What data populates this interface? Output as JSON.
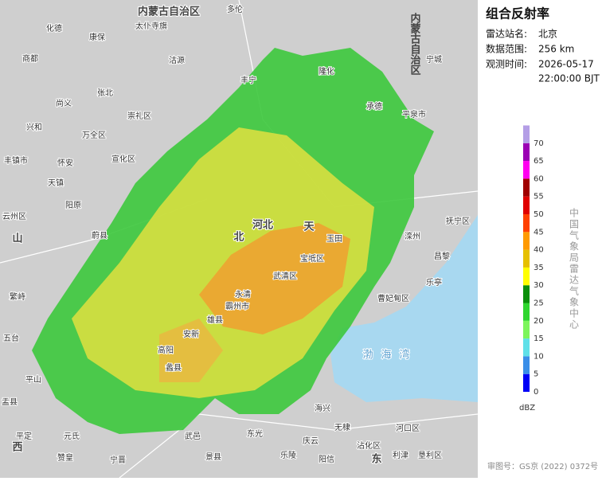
{
  "panel": {
    "title": "组合反射率",
    "station_label": "雷达站名:",
    "station": "北京",
    "range_label": "数据范围:",
    "range": "256 km",
    "time_label": "观测时间:",
    "date": "2026-05-17",
    "time": "22:00:00 BJT"
  },
  "legend": {
    "unit": "dBZ",
    "ticks": [
      0,
      5,
      10,
      15,
      20,
      25,
      30,
      35,
      40,
      45,
      50,
      55,
      60,
      65,
      70
    ],
    "colors": [
      "#0000f6",
      "#3a8ee8",
      "#5fe0e8",
      "#7cf55c",
      "#2ed62e",
      "#0a8f0a",
      "#ffff00",
      "#e6c000",
      "#ff9a00",
      "#ff4000",
      "#e00000",
      "#a00000",
      "#ff00f0",
      "#9b00b4",
      "#b49ee6"
    ]
  },
  "agency": "中国气象局雷达气象中心",
  "approval": "审图号：GS京 (2022) 0372号",
  "places": [
    "内蒙古自治区",
    "多伦",
    "太仆寺旗",
    "康保",
    "化德",
    "商都",
    "沽源",
    "丰宁",
    "张北",
    "尚义",
    "崇礼区",
    "万全区",
    "怀安",
    "宣化区",
    "兴和",
    "丰镇市",
    "天镇",
    "阳原",
    "云州区",
    "蔚县",
    "繁峙",
    "五台",
    "平山",
    "盂县",
    "平定",
    "元氏",
    "赞皇",
    "宁晋",
    "武邑",
    "景县",
    "东光",
    "乐陵",
    "庆云",
    "阳信",
    "海兴",
    "无棣",
    "沾化区",
    "河口区",
    "利津",
    "垦利区",
    "高阳",
    "蠡县",
    "安新",
    "雄县",
    "霸州市",
    "永清",
    "武清区",
    "宝坻区",
    "玉田",
    "滦州",
    "乐亭",
    "昌黎",
    "抚宁区",
    "曹妃甸区",
    "承德",
    "平泉市",
    "宁城",
    "隆化",
    "北",
    "河北",
    "天",
    "渤海湾",
    "山",
    "西",
    "东",
    "内蒙古自治区"
  ]
}
